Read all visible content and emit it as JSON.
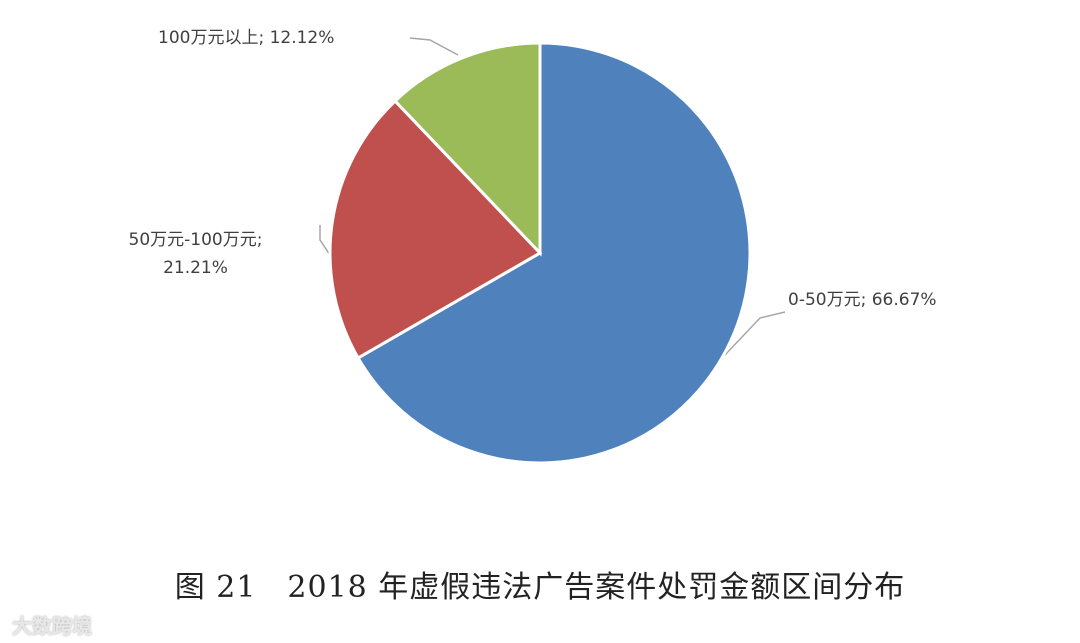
{
  "chart_data": {
    "type": "pie",
    "title": "图 21　2018 年虚假违法广告案件处罚金额区间分布",
    "values": [
      66.67,
      21.21,
      12.12
    ],
    "value_labels": [
      "0-50万元; 66.67%",
      "50万元-100万元; 21.21%",
      "100万元以上; 12.12%"
    ],
    "colors": [
      "#4f81bd",
      "#c0504d",
      "#9bbb59"
    ],
    "watermark": "大数跨境"
  }
}
